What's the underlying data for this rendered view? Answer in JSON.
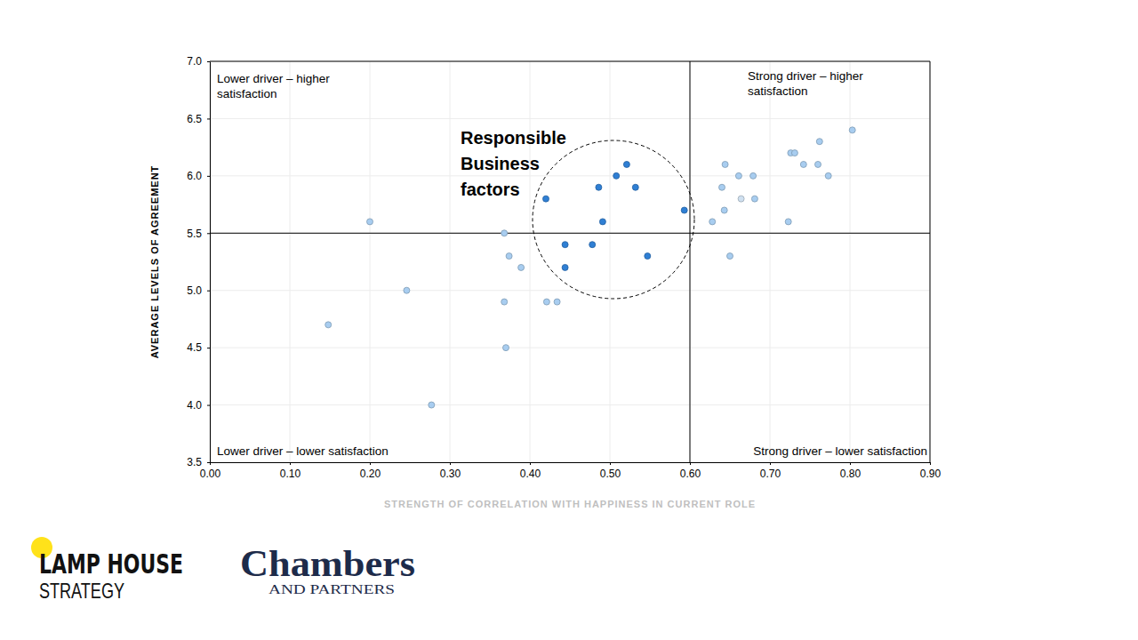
{
  "chart_data": {
    "type": "scatter",
    "x_label": "STRENGTH OF CORRELATION WITH HAPPINESS IN CURRENT ROLE",
    "y_label": "AVERAGE LEVELS OF AGREEMENT",
    "x": [
      0.2,
      0.148,
      0.246,
      0.277,
      0.368,
      0.374,
      0.389,
      0.368,
      0.37,
      0.421,
      0.434,
      0.42,
      0.486,
      0.508,
      0.521,
      0.532,
      0.491,
      0.444,
      0.478,
      0.444,
      0.547,
      0.593,
      0.628,
      0.64,
      0.644,
      0.643,
      0.661,
      0.664,
      0.679,
      0.681,
      0.65,
      0.723,
      0.726,
      0.731,
      0.742,
      0.76,
      0.762,
      0.773,
      0.803
    ],
    "values": [
      5.6,
      4.7,
      5.0,
      4.0,
      5.5,
      5.3,
      5.2,
      4.9,
      4.5,
      4.9,
      4.9,
      5.8,
      5.9,
      6.0,
      6.1,
      5.9,
      5.6,
      5.4,
      5.4,
      5.2,
      5.3,
      5.7,
      5.6,
      5.9,
      6.1,
      5.7,
      6.0,
      5.8,
      6.0,
      5.8,
      5.3,
      5.6,
      6.2,
      6.2,
      6.1,
      6.1,
      6.3,
      6.0,
      6.4
    ],
    "colors": [
      "#a8cdf0",
      "#a8cdf0",
      "#a8cdf0",
      "#a8cdf0",
      "#a8cdf0",
      "#a8cdf0",
      "#a8cdf0",
      "#a8cdf0",
      "#a8cdf0",
      "#a8cdf0",
      "#a8cdf0",
      "#2f7fd4",
      "#2f7fd4",
      "#2f7fd4",
      "#2f7fd4",
      "#2f7fd4",
      "#2f7fd4",
      "#2f7fd4",
      "#2f7fd4",
      "#2f7fd4",
      "#2f7fd4",
      "#2f7fd4",
      "#a8cdf0",
      "#a8cdf0",
      "#a8cdf0",
      "#a8cdf0",
      "#a8cdf0",
      "#cfe0f0",
      "#a8cdf0",
      "#a8cdf0",
      "#a8cdf0",
      "#a8cdf0",
      "#a8cdf0",
      "#a8cdf0",
      "#a8cdf0",
      "#a8cdf0",
      "#a8cdf0",
      "#a8cdf0",
      "#a8cdf0"
    ],
    "xlim": [
      0,
      0.9
    ],
    "xticks": [
      {
        "value": 0,
        "label": "0.00"
      },
      {
        "value": 0.1,
        "label": "0.10"
      },
      {
        "value": 0.2,
        "label": "0.20"
      },
      {
        "value": 0.3,
        "label": "0.30"
      },
      {
        "value": 0.4,
        "label": "0.40"
      },
      {
        "value": 0.5,
        "label": "0.50"
      },
      {
        "value": 0.6,
        "label": "0.60"
      },
      {
        "value": 0.7,
        "label": "0.70"
      },
      {
        "value": 0.8,
        "label": "0.80"
      },
      {
        "value": 0.9,
        "label": "0.90"
      }
    ],
    "ylim": [
      3.5,
      7.0
    ],
    "yticks": [
      3.5,
      {
        "value": 4,
        "label": "4.0"
      },
      4.5,
      {
        "value": 5,
        "label": "5.0"
      },
      5.5,
      {
        "value": 6,
        "label": "6.0"
      },
      6.5,
      {
        "value": 7,
        "label": "7.0"
      }
    ],
    "grid": true,
    "dividers": {
      "x": 0.6,
      "y": 5.5
    },
    "quadrant_labels": {
      "top_left": [
        "Lower driver – higher",
        "satisfaction"
      ],
      "top_right": [
        "Strong driver – higher",
        "satisfaction"
      ],
      "bottom_left": [
        "Lower driver – lower satisfaction"
      ],
      "bottom_right": [
        "Strong driver – lower satisfaction"
      ]
    },
    "annotation": [
      "Responsible",
      "Business",
      "factors"
    ]
  },
  "logos": {
    "lamp_house": [
      "LAMP HOUSE",
      "STRATEGY"
    ],
    "chambers": [
      "Chambers",
      "AND PARTNERS"
    ]
  }
}
